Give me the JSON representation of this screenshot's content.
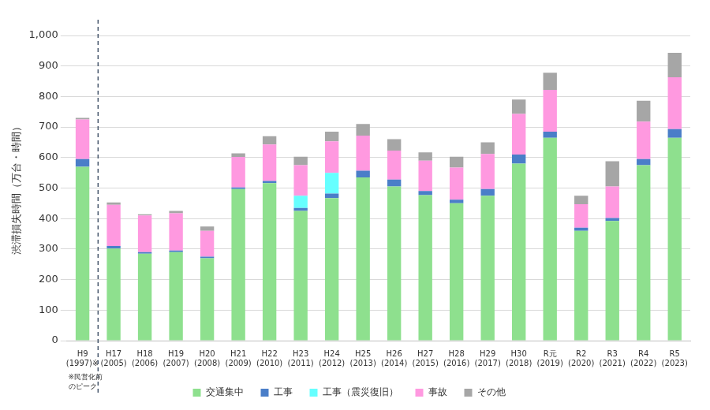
{
  "chart_data": {
    "type": "bar",
    "stacked": true,
    "grid": true,
    "legend": "bottom",
    "y_label": "渋滞損失時間（万台・時間）",
    "note": "※民営化前\nのピーク",
    "categories": [
      "H9\n(1997)※",
      "H17\n(2005)",
      "H18\n(2006)",
      "H19\n(2007)",
      "H20\n(2008)",
      "H21\n(2009)",
      "H22\n(2010)",
      "H23\n(2011)",
      "H24\n(2012)",
      "H25\n(2013)",
      "H26\n(2014)",
      "H27\n(2015)",
      "H28\n(2016)",
      "H29\n(2017)",
      "H30\n(2018)",
      "R元\n(2019)",
      "R2\n(2020)",
      "R3\n(2021)",
      "R4\n(2022)",
      "R5\n(2023)"
    ],
    "series": [
      {
        "name": "交通集中",
        "color": "#8ee08e",
        "values": [
          570,
          302,
          285,
          290,
          270,
          497,
          516,
          425,
          467,
          535,
          505,
          477,
          450,
          475,
          580,
          665,
          360,
          392,
          575,
          665
        ]
      },
      {
        "name": "工事",
        "color": "#4a7ec8",
        "values": [
          25,
          8,
          5,
          5,
          5,
          5,
          7,
          10,
          15,
          22,
          23,
          13,
          12,
          22,
          30,
          20,
          10,
          10,
          20,
          28
        ]
      },
      {
        "name": "工事（震災復旧）",
        "color": "#66ffff",
        "values": [
          0,
          0,
          0,
          0,
          0,
          0,
          0,
          40,
          68,
          0,
          0,
          0,
          0,
          0,
          0,
          0,
          0,
          0,
          0,
          0
        ]
      },
      {
        "name": "事故",
        "color": "#ff99e0",
        "values": [
          130,
          135,
          120,
          122,
          85,
          100,
          120,
          100,
          103,
          115,
          95,
          100,
          105,
          115,
          133,
          137,
          77,
          103,
          123,
          170
        ]
      },
      {
        "name": "その他",
        "color": "#a6a6a6",
        "values": [
          5,
          8,
          4,
          8,
          14,
          12,
          27,
          28,
          32,
          38,
          37,
          27,
          36,
          38,
          47,
          56,
          28,
          83,
          68,
          80
        ]
      }
    ],
    "ylim": [
      0,
      1000
    ],
    "yticks": [
      0,
      100,
      200,
      300,
      400,
      500,
      600,
      700,
      800,
      900,
      {
        "value": 1000,
        "label": "1,000"
      }
    ]
  }
}
